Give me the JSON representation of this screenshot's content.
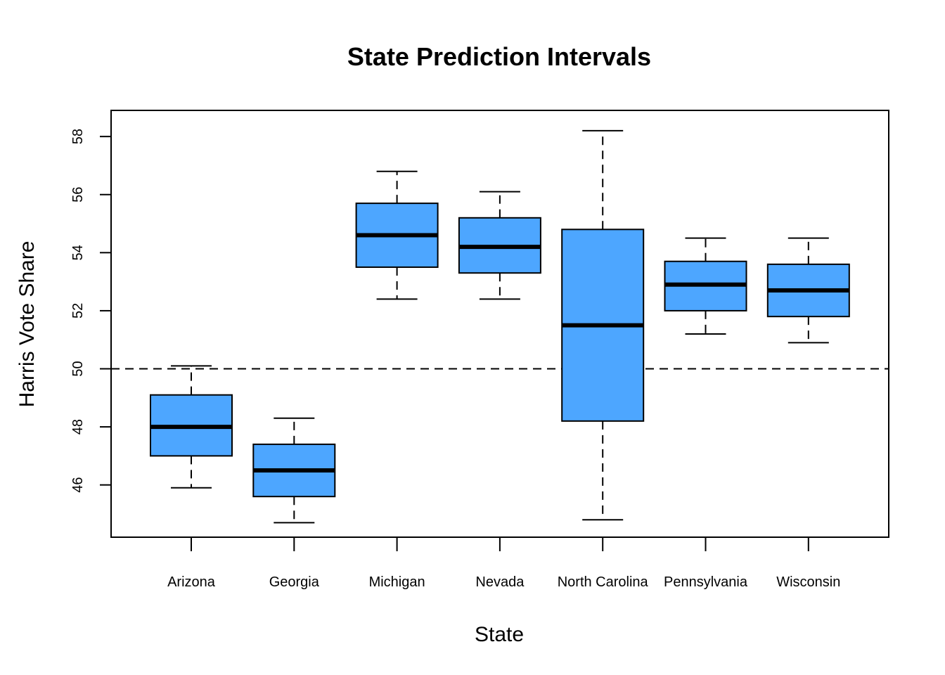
{
  "chart_data": {
    "type": "boxplot",
    "title": "State Prediction Intervals",
    "xlabel": "State",
    "ylabel": "Harris Vote Share",
    "categories": [
      "Arizona",
      "Georgia",
      "Michigan",
      "Nevada",
      "North Carolina",
      "Pennsylvania",
      "Wisconsin"
    ],
    "boxes": [
      {
        "min": 45.9,
        "q1": 47.0,
        "median": 48.0,
        "q3": 49.1,
        "max": 50.1
      },
      {
        "min": 44.7,
        "q1": 45.6,
        "median": 46.5,
        "q3": 47.4,
        "max": 48.3
      },
      {
        "min": 52.4,
        "q1": 53.5,
        "median": 54.6,
        "q3": 55.7,
        "max": 56.8
      },
      {
        "min": 52.4,
        "q1": 53.3,
        "median": 54.2,
        "q3": 55.2,
        "max": 56.1
      },
      {
        "min": 44.8,
        "q1": 48.2,
        "median": 51.5,
        "q3": 54.8,
        "max": 58.2
      },
      {
        "min": 51.2,
        "q1": 52.0,
        "median": 52.9,
        "q3": 53.7,
        "max": 54.5
      },
      {
        "min": 50.9,
        "q1": 51.8,
        "median": 52.7,
        "q3": 53.6,
        "max": 54.5
      }
    ],
    "yticks": [
      "46",
      "48",
      "50",
      "52",
      "54",
      "56",
      "58"
    ],
    "ylim": [
      44.2,
      58.9
    ],
    "reference_line": 50,
    "box_color": "#4DA6FF",
    "grid": false,
    "legend": "none"
  }
}
